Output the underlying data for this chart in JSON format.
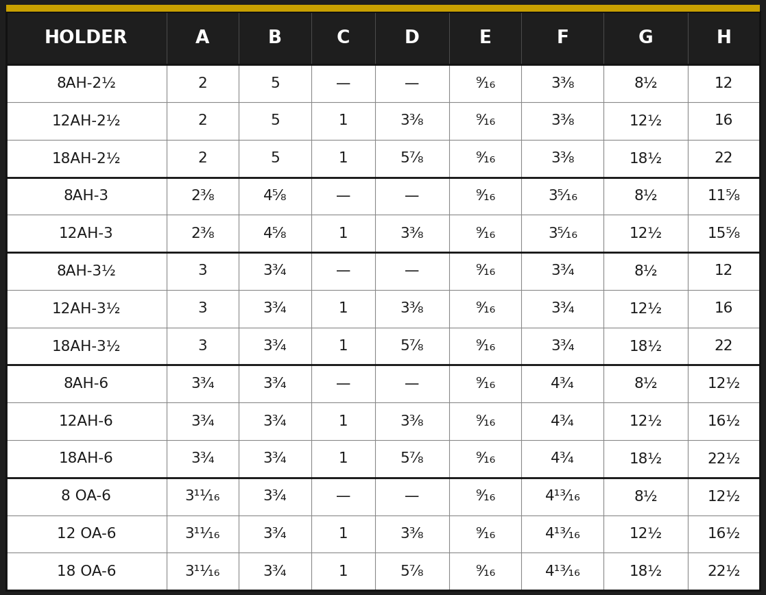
{
  "header": [
    "HOLDER",
    "A",
    "B",
    "C",
    "D",
    "E",
    "F",
    "G",
    "H"
  ],
  "rows_data": [
    [
      "8AH-2½",
      "2",
      "5",
      "—",
      "—",
      "⁹⁄₁₆",
      "3³⁄₈",
      "8½",
      "12"
    ],
    [
      "12AH-2½",
      "2",
      "5",
      "1",
      "3³⁄₈",
      "⁹⁄₁₆",
      "3³⁄₈",
      "12½",
      "16"
    ],
    [
      "18AH-2½",
      "2",
      "5",
      "1",
      "5⁷⁄₈",
      "⁹⁄₁₆",
      "3³⁄₈",
      "18½",
      "22"
    ],
    null,
    [
      "8AH-3",
      "2³⁄₈",
      "4⁵⁄₈",
      "—",
      "—",
      "⁹⁄₁₆",
      "3⁵⁄₁₆",
      "8½",
      "11⁵⁄₈"
    ],
    [
      "12AH-3",
      "2³⁄₈",
      "4⁵⁄₈",
      "1",
      "3³⁄₈",
      "⁹⁄₁₆",
      "3⁵⁄₁₆",
      "12½",
      "15⁵⁄₈"
    ],
    null,
    [
      "8AH-3½",
      "3",
      "3³⁄₄",
      "—",
      "—",
      "⁹⁄₁₆",
      "3³⁄₄",
      "8½",
      "12"
    ],
    [
      "12AH-3½",
      "3",
      "3³⁄₄",
      "1",
      "3³⁄₈",
      "⁹⁄₁₆",
      "3³⁄₄",
      "12½",
      "16"
    ],
    [
      "18AH-3½",
      "3",
      "3³⁄₄",
      "1",
      "5⁷⁄₈",
      "⁹⁄₁₆",
      "3³⁄₄",
      "18½",
      "22"
    ],
    null,
    [
      "8AH-6",
      "3³⁄₄",
      "3³⁄₄",
      "—",
      "—",
      "⁹⁄₁₆",
      "4³⁄₄",
      "8½",
      "12½"
    ],
    [
      "12AH-6",
      "3³⁄₄",
      "3³⁄₄",
      "1",
      "3³⁄₈",
      "⁹⁄₁₆",
      "4³⁄₄",
      "12½",
      "16½"
    ],
    [
      "18AH-6",
      "3³⁄₄",
      "3³⁄₄",
      "1",
      "5⁷⁄₈",
      "⁹⁄₁₆",
      "4³⁄₄",
      "18½",
      "22½"
    ],
    null,
    [
      "8 OA-6",
      "3¹¹⁄₁₆",
      "3³⁄₄",
      "—",
      "—",
      "⁹⁄₁₆",
      "4¹³⁄₁₆",
      "8½",
      "12½"
    ],
    [
      "12 OA-6",
      "3¹¹⁄₁₆",
      "3³⁄₄",
      "1",
      "3³⁄₈",
      "⁹⁄₁₆",
      "4¹³⁄₁₆",
      "12½",
      "16½"
    ],
    [
      "18 OA-6",
      "3¹¹⁄₁₆",
      "3³⁄₄",
      "1",
      "5⁷⁄₈",
      "⁹⁄₁₆",
      "4¹³⁄₁₆",
      "18½",
      "22½"
    ]
  ],
  "group_sizes": [
    3,
    2,
    3,
    3,
    3
  ],
  "header_bg": "#1e1e1e",
  "header_fg": "#ffffff",
  "cell_bg_white": "#ffffff",
  "cell_fg": "#1a1a1a",
  "top_bar_color": "#c8a000",
  "thick_line_color": "#111111",
  "thin_line_color": "#888888",
  "outer_bg": "#1e1e1e",
  "col_widths_rel": [
    1.95,
    0.88,
    0.88,
    0.78,
    0.9,
    0.88,
    1.0,
    1.02,
    0.88
  ],
  "header_fontsize": 19,
  "cell_fontsize": 15.5,
  "thick_lw": 2.0,
  "thin_lw": 0.8,
  "top_bar_height": 0.012
}
